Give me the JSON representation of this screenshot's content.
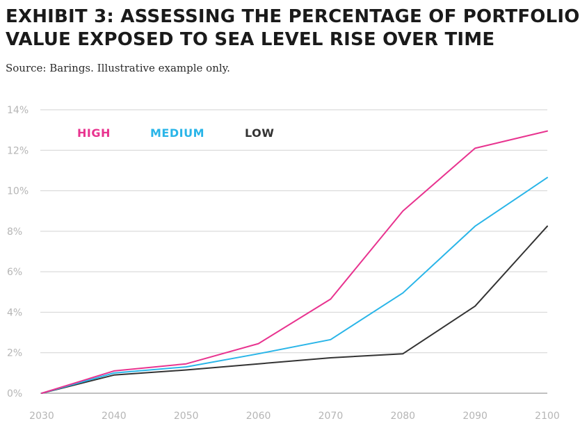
{
  "title_lines": [
    "EXHIBIT 3: ASSESSING THE PERCENTAGE OF PORTFOLIO",
    "VALUE EXPOSED TO SEA LEVEL RISE OVER TIME"
  ],
  "subtitle": "Source: Barings. Illustrative example only.",
  "chart_data": {
    "type": "line",
    "title": "EXHIBIT 3: ASSESSING THE PERCENTAGE OF PORTFOLIO VALUE EXPOSED TO SEA LEVEL RISE OVER TIME",
    "subtitle": "Source: Barings. Illustrative example only.",
    "x": [
      "2030",
      "2040",
      "2050",
      "2060",
      "2070",
      "2080",
      "2090",
      "2100"
    ],
    "xlim": [
      2030,
      2100
    ],
    "ylim": [
      0,
      14
    ],
    "y_ticks": [
      "0%",
      "2%",
      "4%",
      "6%",
      "8%",
      "10%",
      "12%",
      "14%"
    ],
    "grid": true,
    "legend_position": "top-left",
    "series": [
      {
        "name": "HIGH",
        "color": "#e8338f",
        "values": [
          0,
          1.1,
          1.45,
          2.45,
          4.65,
          9.0,
          12.1,
          12.95
        ]
      },
      {
        "name": "MEDIUM",
        "color": "#29b5e8",
        "values": [
          0,
          1.0,
          1.3,
          1.95,
          2.65,
          4.95,
          8.25,
          10.65
        ]
      },
      {
        "name": "LOW",
        "color": "#333333",
        "values": [
          0,
          0.9,
          1.15,
          1.45,
          1.75,
          1.95,
          4.3,
          8.25
        ]
      }
    ]
  }
}
